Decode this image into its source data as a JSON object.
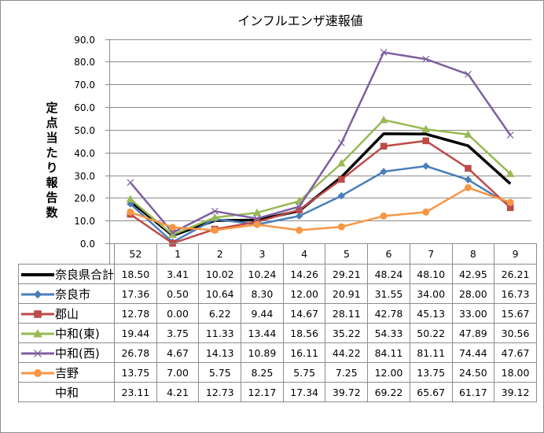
{
  "chart_data": {
    "type": "line",
    "title": "インフルエンザ速報値",
    "ylabel": "定点当たり報告数",
    "xlabel": "",
    "ylim": [
      0,
      90
    ],
    "yticks": [
      "0.0",
      "10.0",
      "20.0",
      "30.0",
      "40.0",
      "50.0",
      "60.0",
      "70.0",
      "80.0",
      "90.0"
    ],
    "grid": true,
    "legend": "data-table-bottom",
    "categories": [
      "52",
      "1",
      "2",
      "3",
      "4",
      "5",
      "6",
      "7",
      "8",
      "9"
    ],
    "series": [
      {
        "name": "奈良県合計",
        "color": "#000000",
        "marker": "none",
        "plotted": true,
        "values": [
          18.5,
          3.41,
          10.02,
          10.24,
          14.26,
          29.21,
          48.24,
          48.1,
          42.95,
          26.21
        ],
        "labels": [
          "18.50",
          "3.41",
          "10.02",
          "10.24",
          "14.26",
          "29.21",
          "48.24",
          "48.10",
          "42.95",
          "26.21"
        ]
      },
      {
        "name": "奈良市",
        "color": "#4a7ebb",
        "marker": "diamond",
        "plotted": true,
        "values": [
          17.36,
          0.5,
          10.64,
          8.3,
          12.0,
          20.91,
          31.55,
          34.0,
          28.0,
          16.73
        ],
        "labels": [
          "17.36",
          "0.50",
          "10.64",
          "8.30",
          "12.00",
          "20.91",
          "31.55",
          "34.00",
          "28.00",
          "16.73"
        ]
      },
      {
        "name": "郡山",
        "color": "#be4b48",
        "marker": "square",
        "plotted": true,
        "values": [
          12.78,
          0.0,
          6.22,
          9.44,
          14.67,
          28.11,
          42.78,
          45.13,
          33.0,
          15.67
        ],
        "labels": [
          "12.78",
          "0.00",
          "6.22",
          "9.44",
          "14.67",
          "28.11",
          "42.78",
          "45.13",
          "33.00",
          "15.67"
        ]
      },
      {
        "name": "中和(東)",
        "color": "#98b954",
        "marker": "triangle",
        "plotted": true,
        "values": [
          19.44,
          3.75,
          11.33,
          13.44,
          18.56,
          35.22,
          54.33,
          50.22,
          47.89,
          30.56
        ],
        "labels": [
          "19.44",
          "3.75",
          "11.33",
          "13.44",
          "18.56",
          "35.22",
          "54.33",
          "50.22",
          "47.89",
          "30.56"
        ]
      },
      {
        "name": "中和(西)",
        "color": "#7d60a0",
        "marker": "x",
        "plotted": true,
        "values": [
          26.78,
          4.67,
          14.13,
          10.89,
          16.11,
          44.22,
          84.11,
          81.11,
          74.44,
          47.67
        ],
        "labels": [
          "26.78",
          "4.67",
          "14.13",
          "10.89",
          "16.11",
          "44.22",
          "84.11",
          "81.11",
          "74.44",
          "47.67"
        ]
      },
      {
        "name": "吉野",
        "color": "#f79646",
        "marker": "circle",
        "plotted": true,
        "values": [
          13.75,
          7.0,
          5.75,
          8.25,
          5.75,
          7.25,
          12.0,
          13.75,
          24.5,
          18.0
        ],
        "labels": [
          "13.75",
          "7.00",
          "5.75",
          "8.25",
          "5.75",
          "7.25",
          "12.00",
          "13.75",
          "24.50",
          "18.00"
        ]
      },
      {
        "name": "中和",
        "color": "none",
        "marker": "none",
        "plotted": false,
        "values": [
          23.11,
          4.21,
          12.73,
          12.17,
          17.34,
          39.72,
          69.22,
          65.67,
          61.17,
          39.12
        ],
        "labels": [
          "23.11",
          "4.21",
          "12.73",
          "12.17",
          "17.34",
          "39.72",
          "69.22",
          "65.67",
          "61.17",
          "39.12"
        ]
      }
    ]
  }
}
